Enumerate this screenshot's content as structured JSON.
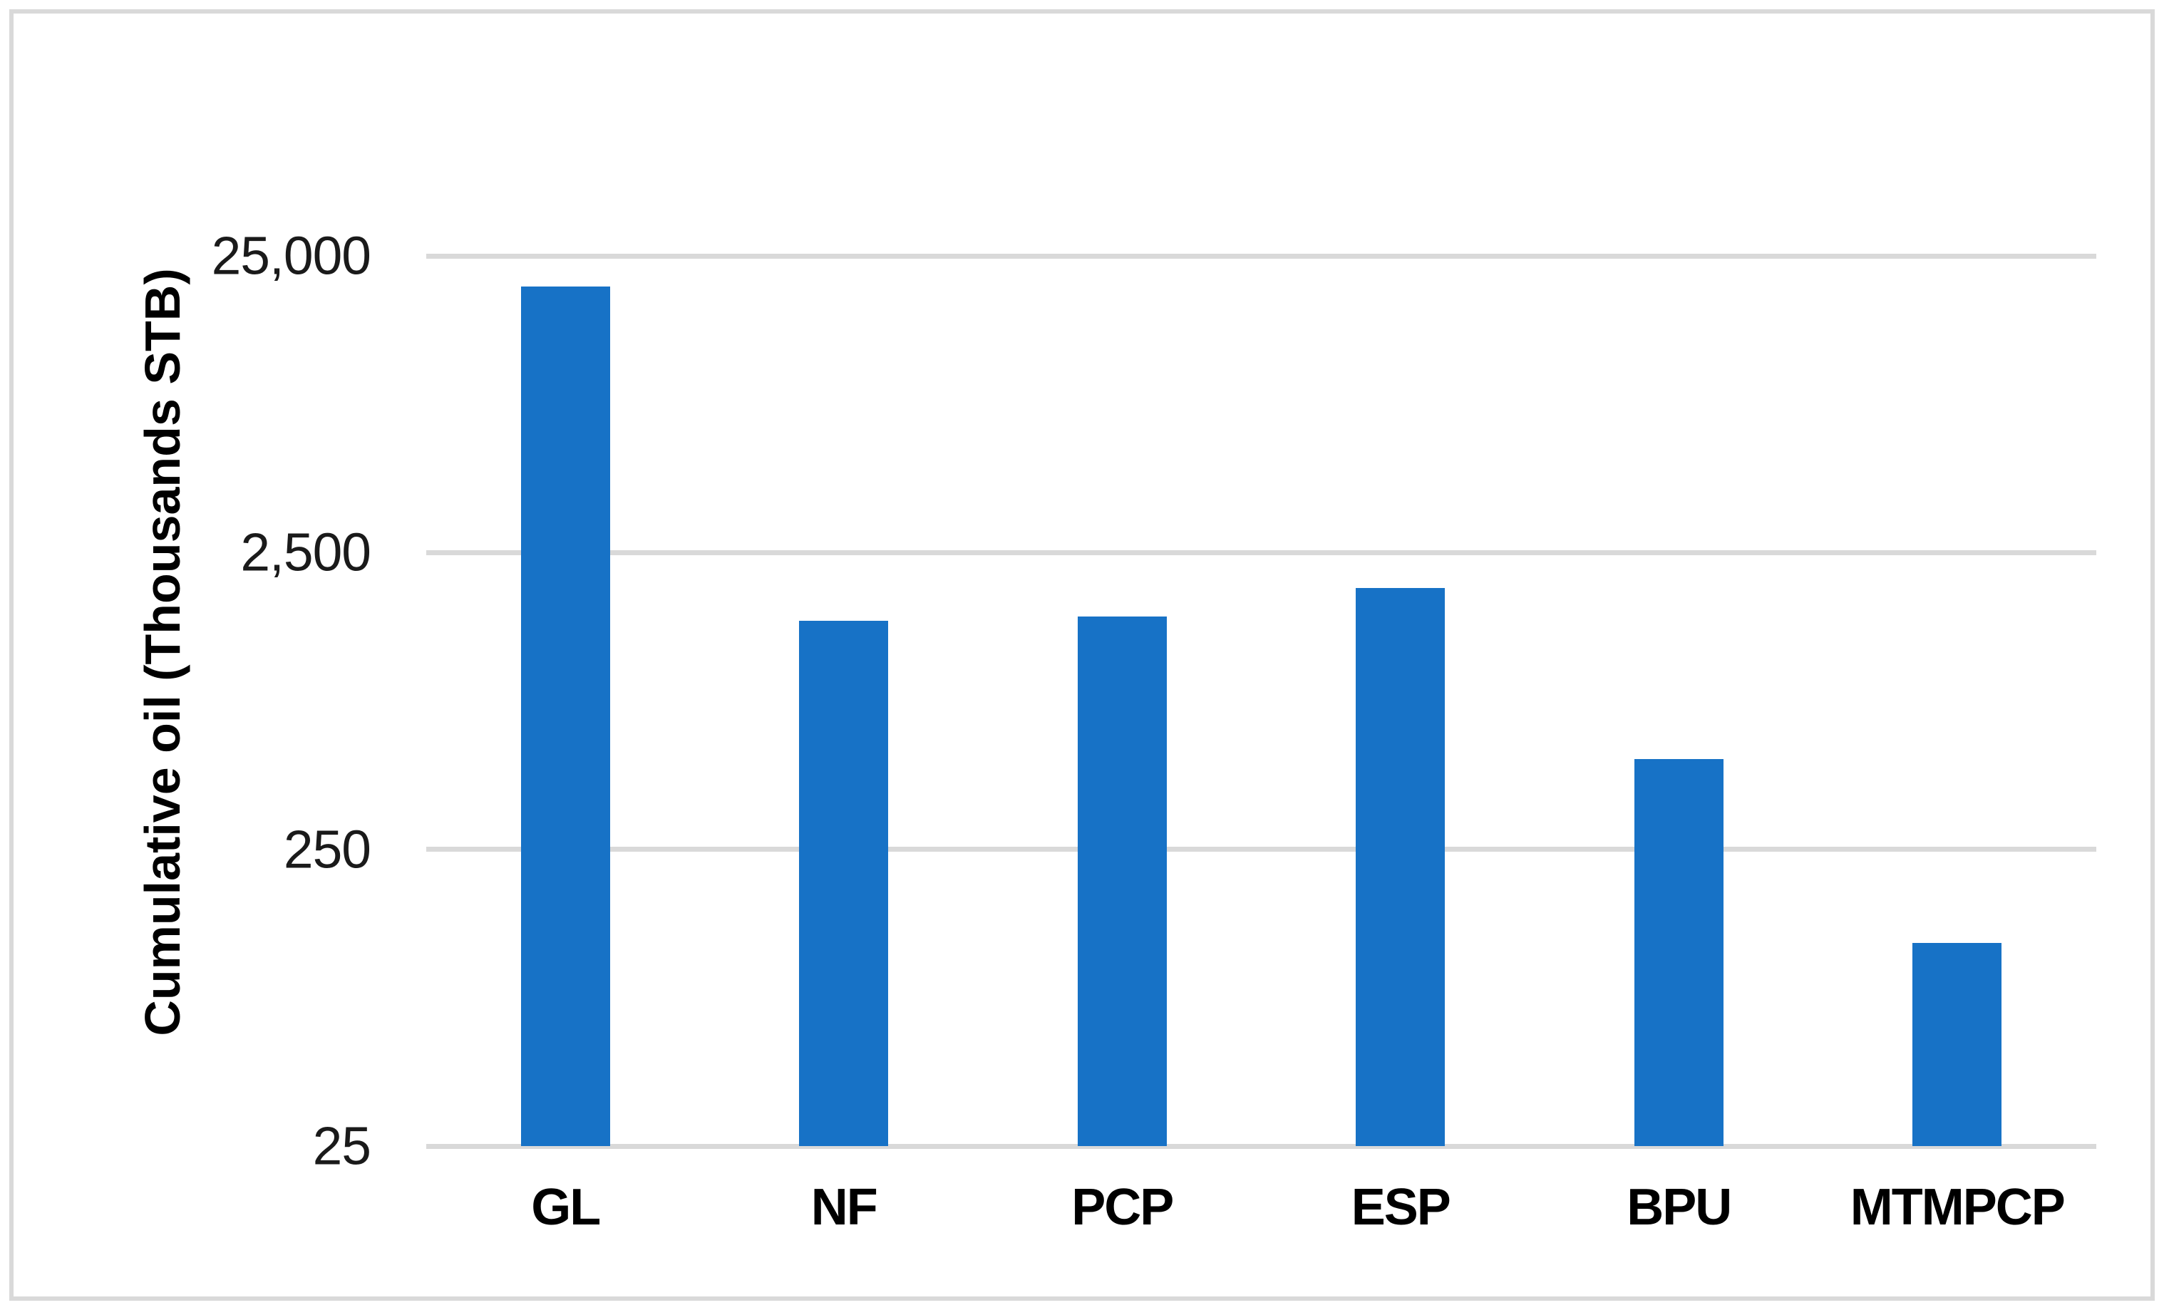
{
  "figure": {
    "background_color": "#ffffff",
    "frame_border_color": "#d9d9d9"
  },
  "chart_data": {
    "type": "bar",
    "title": "",
    "categories": [
      "GL",
      "NF",
      "PCP",
      "ESP",
      "BPU",
      "MTMPCP"
    ],
    "values": [
      19700,
      1470,
      1525,
      1900,
      505,
      121
    ],
    "xlabel": "",
    "ylabel": "Cumulative oil (Thousands STB)",
    "y_scale": "log",
    "ylim": [
      25,
      25000
    ],
    "y_ticks": [
      25,
      250,
      2500,
      25000
    ],
    "y_tick_labels": [
      "25",
      "250",
      "2,500",
      "25,000"
    ],
    "grid": true,
    "legend": false,
    "bar_color": "#1772c6",
    "gridline_color": "#d9d9d9",
    "tick_label_color": "#1a1a1a",
    "category_label_color": "#000000"
  }
}
